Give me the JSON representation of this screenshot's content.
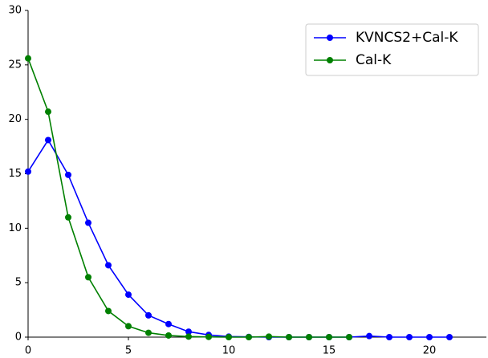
{
  "chart_data": {
    "type": "line",
    "x": [
      0,
      1,
      2,
      3,
      4,
      5,
      6,
      7,
      8,
      9,
      10,
      11,
      12,
      13,
      14,
      15,
      16,
      17,
      18,
      19,
      20,
      21
    ],
    "series": [
      {
        "name": "KVNCS2+Cal-K",
        "color": "#0000ff",
        "values": [
          15.2,
          18.1,
          14.9,
          10.5,
          6.6,
          3.9,
          2.0,
          1.2,
          0.5,
          0.2,
          0.05,
          0.02,
          0,
          0,
          0,
          0,
          0,
          0.1,
          0,
          0,
          0,
          0
        ]
      },
      {
        "name": "Cal-K",
        "color": "#008000",
        "values": [
          25.6,
          20.7,
          11.0,
          5.5,
          2.4,
          1.0,
          0.4,
          0.15,
          0.05,
          0.02,
          0,
          0,
          0.05,
          0,
          0,
          0,
          0,
          null,
          null,
          null,
          null,
          null
        ]
      }
    ],
    "xlim": [
      0,
      22.84
    ],
    "ylim": [
      0,
      30
    ],
    "xticks": [
      0,
      5,
      10,
      15,
      20
    ],
    "yticks": [
      0,
      5,
      10,
      15,
      20,
      25,
      30
    ],
    "legend": "upper right"
  }
}
